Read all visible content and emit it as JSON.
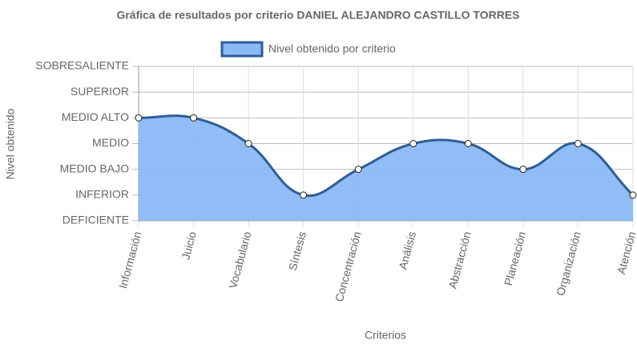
{
  "chart_data": {
    "type": "line",
    "title": "Gráfica de resultados por criterio DANIEL ALEJANDRO CASTILLO TORRES",
    "x_label": "Criterios",
    "y_label": "Nivel obtenido",
    "categories": [
      "Información",
      "Juicio",
      "Vocabulario",
      "Síntesis",
      "Concentración",
      "Análisis",
      "Abstracción",
      "Planeación",
      "Organización",
      "Atención"
    ],
    "series": [
      {
        "name": "Nivel obtenido por criterio",
        "color": "#8ab9f5",
        "border_color": "#2f5d95",
        "values": [
          4,
          4,
          3,
          1,
          2,
          3,
          3,
          2,
          3,
          1
        ]
      }
    ],
    "ylim": [
      0,
      6
    ],
    "yticks": [
      {
        "value": 0,
        "label": "DEFICIENTE"
      },
      {
        "value": 1,
        "label": "INFERIOR"
      },
      {
        "value": 2,
        "label": "MEDIO BAJO"
      },
      {
        "value": 3,
        "label": "MEDIO"
      },
      {
        "value": 4,
        "label": "MEDIO ALTO"
      },
      {
        "value": 5,
        "label": "SUPERIOR"
      },
      {
        "value": 6,
        "label": "SOBRESALIENTE"
      }
    ],
    "grid": true,
    "fill": true,
    "legend_position": "top"
  }
}
